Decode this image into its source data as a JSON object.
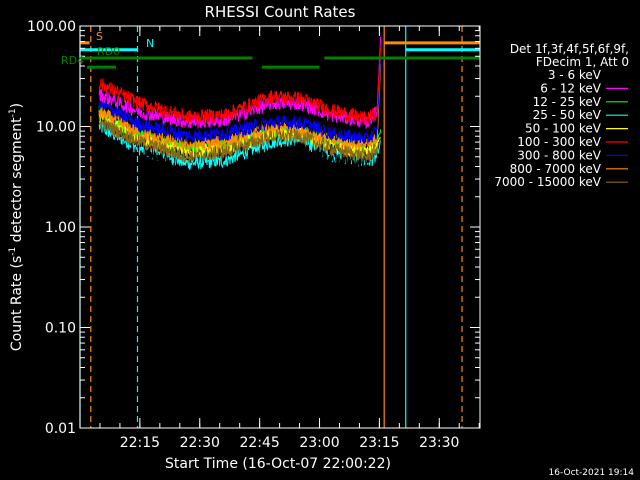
{
  "chart_data": {
    "type": "line",
    "title": "RHESSI Count Rates",
    "xlabel": "Start Time (16-Oct-07 22:00:22)",
    "ylabel": "Count Rate (s⁻¹ detector segment⁻¹)",
    "ylabel_main": "Count Rate (s",
    "ylabel_sup1": "-1",
    "ylabel_mid": " detector segment",
    "ylabel_sup2": "-1",
    "ylabel_end": ")",
    "xlim": [
      22.0,
      23.67
    ],
    "ylim": [
      0.01,
      100
    ],
    "yscale": "log",
    "x_tick_labels": [
      "22:15",
      "22:30",
      "22:45",
      "23:00",
      "23:15",
      "23:30"
    ],
    "x_ticks_hours": [
      22.25,
      22.5,
      22.75,
      23.0,
      23.25,
      23.5
    ],
    "y_tick_labels": [
      "100.00",
      "10.00",
      "1.00",
      "0.10",
      "0.01"
    ],
    "y_ticks": [
      100,
      10,
      1,
      0.1,
      0.01
    ],
    "legend_header": [
      "Det 1f,3f,4f,5f,6f,9f,",
      "FDecim 1, Att 0"
    ],
    "legend_position": "right",
    "series": [
      {
        "name": "3 - 6 keV",
        "color": "#000000",
        "anchors": [
          [
            22.08,
            12.5
          ],
          [
            22.25,
            6.5
          ],
          [
            22.45,
            3.2
          ],
          [
            22.6,
            3.6
          ],
          [
            22.8,
            5.5
          ],
          [
            22.92,
            6.2
          ],
          [
            23.05,
            4.6
          ],
          [
            23.2,
            4.6
          ],
          [
            23.24,
            6.5
          ],
          [
            23.255,
            8.5
          ]
        ]
      },
      {
        "name": "6 - 12 keV",
        "color": "#ff00ff",
        "anchors": [
          [
            22.08,
            21
          ],
          [
            22.25,
            14
          ],
          [
            22.45,
            11
          ],
          [
            22.6,
            11.5
          ],
          [
            22.8,
            17
          ],
          [
            22.92,
            17
          ],
          [
            23.05,
            13
          ],
          [
            23.2,
            11
          ],
          [
            23.24,
            14
          ],
          [
            23.255,
            80
          ]
        ]
      },
      {
        "name": "12 - 25 keV",
        "color": "#00ff00",
        "anchors": [
          [
            22.08,
            14
          ],
          [
            22.25,
            8
          ],
          [
            22.45,
            6
          ],
          [
            22.6,
            6.5
          ],
          [
            22.8,
            9
          ],
          [
            22.92,
            9
          ],
          [
            23.05,
            7
          ],
          [
            23.2,
            6
          ],
          [
            23.24,
            7
          ],
          [
            23.255,
            9
          ]
        ]
      },
      {
        "name": "25 - 50 keV",
        "color": "#00ffff",
        "anchors": [
          [
            22.08,
            10
          ],
          [
            22.25,
            6
          ],
          [
            22.45,
            4.3
          ],
          [
            22.6,
            4.5
          ],
          [
            22.8,
            7
          ],
          [
            22.92,
            7.5
          ],
          [
            23.05,
            5.2
          ],
          [
            23.2,
            4.5
          ],
          [
            23.24,
            5
          ],
          [
            23.255,
            7
          ]
        ]
      },
      {
        "name": "50 - 100 keV",
        "color": "#ffff00",
        "anchors": [
          [
            22.08,
            13
          ],
          [
            22.25,
            7.5
          ],
          [
            22.45,
            5.6
          ],
          [
            22.6,
            6
          ],
          [
            22.8,
            8.5
          ],
          [
            22.92,
            8.5
          ],
          [
            23.05,
            6.5
          ],
          [
            23.2,
            5.5
          ],
          [
            23.24,
            6.5
          ],
          [
            23.255,
            8
          ]
        ]
      },
      {
        "name": "100 - 300 keV",
        "color": "#ff0000",
        "anchors": [
          [
            22.08,
            27
          ],
          [
            22.25,
            17
          ],
          [
            22.45,
            12.5
          ],
          [
            22.6,
            13
          ],
          [
            22.8,
            20
          ],
          [
            22.92,
            19
          ],
          [
            23.05,
            14.5
          ],
          [
            23.2,
            12
          ],
          [
            23.24,
            14
          ],
          [
            23.255,
            60
          ]
        ]
      },
      {
        "name": "300 - 800 keV",
        "color": "#0000ff",
        "anchors": [
          [
            22.08,
            17
          ],
          [
            22.25,
            10.5
          ],
          [
            22.45,
            8
          ],
          [
            22.6,
            8.5
          ],
          [
            22.8,
            11
          ],
          [
            22.92,
            11
          ],
          [
            23.05,
            8.5
          ],
          [
            23.2,
            7.5
          ],
          [
            23.24,
            9
          ],
          [
            23.255,
            50
          ]
        ]
      },
      {
        "name": "800 - 7000 keV",
        "color": "#ff8c00",
        "anchors": [
          [
            22.08,
            14
          ],
          [
            22.25,
            8.5
          ],
          [
            22.45,
            6.5
          ],
          [
            22.6,
            7
          ],
          [
            22.8,
            9.5
          ],
          [
            22.92,
            9.5
          ],
          [
            23.05,
            7.2
          ],
          [
            23.2,
            6.5
          ],
          [
            23.24,
            7.5
          ],
          [
            23.255,
            40
          ]
        ]
      },
      {
        "name": "7000 - 15000 keV",
        "color": "#8b6914",
        "anchors": [
          [
            22.08,
            11
          ],
          [
            22.25,
            7
          ],
          [
            22.45,
            5
          ],
          [
            22.6,
            5.5
          ],
          [
            22.8,
            8
          ],
          [
            22.92,
            8
          ],
          [
            23.05,
            6
          ],
          [
            23.2,
            5
          ],
          [
            23.24,
            6
          ],
          [
            23.255,
            7.5
          ]
        ]
      }
    ],
    "flag_bars": [
      {
        "label": "S",
        "color": "#ff8c00",
        "y": 68,
        "segments": [
          [
            22.0,
            22.04
          ],
          [
            23.27,
            23.67
          ]
        ]
      },
      {
        "label": "N",
        "color": "#00ffff",
        "y": 58,
        "segments": [
          [
            22.0,
            22.24
          ],
          [
            23.36,
            23.67
          ]
        ]
      },
      {
        "label": "RD0",
        "color": "#008000",
        "y": 48,
        "segments": [
          [
            22.0,
            22.72
          ],
          [
            23.02,
            23.67
          ]
        ]
      },
      {
        "label": "RD4",
        "color": "#008000",
        "y": 39,
        "segments": [
          [
            22.03,
            22.15
          ],
          [
            22.76,
            23.0
          ]
        ]
      }
    ],
    "vertical_lines": [
      {
        "color": "#00ffff",
        "style": "solid",
        "x": 22.0
      },
      {
        "color": "#ff8c00",
        "style": "dashed",
        "x": 22.045
      },
      {
        "color": "#00ffff",
        "style": "dashed",
        "x": 22.24
      },
      {
        "color": "#ff8c00",
        "style": "solid",
        "x": 23.27
      },
      {
        "color": "#00ffff",
        "style": "solid",
        "x": 23.36
      },
      {
        "color": "#ff8c00",
        "style": "dashed",
        "x": 23.595
      }
    ],
    "timestamp": "16-Oct-2021 19:14"
  }
}
